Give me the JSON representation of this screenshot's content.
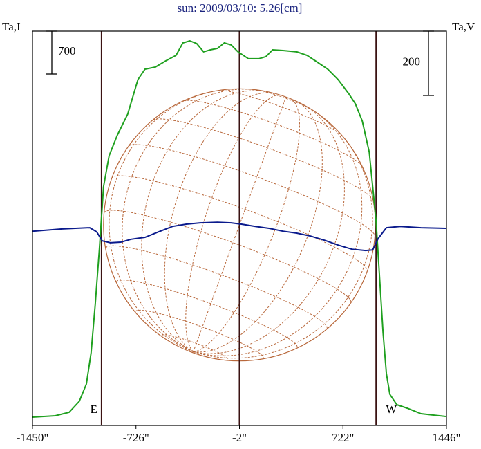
{
  "chart_data": {
    "type": "line",
    "title": "sun: 2009/03/10: 5.26[cm]",
    "ylabel": "Ta,I",
    "y2label": "Ta,V",
    "xlim": [
      -1450,
      1446
    ],
    "xticks": [
      {
        "value": -1450,
        "label": "-1450\""
      },
      {
        "value": -726,
        "label": "-726\""
      },
      {
        "value": -2,
        "label": "-2\""
      },
      {
        "value": 722,
        "label": "722\""
      },
      {
        "value": 1446,
        "label": "1446\""
      }
    ],
    "ylim": [
      0,
      6435
    ],
    "y2lim": [
      -613,
      613
    ],
    "scale_bars": [
      {
        "axis": "y",
        "value": 700
      },
      {
        "axis": "y2",
        "value": 200
      }
    ],
    "markers": [
      {
        "x": -967,
        "label": "E"
      },
      {
        "x": -2
      },
      {
        "x": 954,
        "label": "W"
      }
    ],
    "disk": {
      "center": -2,
      "radius": 951,
      "color": "#b8673a"
    },
    "series": [
      {
        "name": "Ta,I",
        "color": "#1fa01f",
        "x": [
          -1450,
          -1291,
          -1194,
          -1122,
          -1073,
          -1040,
          -1011,
          -982,
          -953,
          -914,
          -856,
          -784,
          -712,
          -663,
          -591,
          -518,
          -446,
          -398,
          -349,
          -301,
          -253,
          -205,
          -156,
          -108,
          -60,
          -12,
          61,
          133,
          182,
          230,
          302,
          399,
          471,
          544,
          616,
          688,
          761,
          809,
          857,
          906,
          930,
          954,
          978,
          1002,
          1026,
          1050,
          1099,
          1171,
          1268,
          1441
        ],
        "values": [
          135,
          158,
          214,
          395,
          677,
          1185,
          1976,
          2879,
          3895,
          4403,
          4742,
          5081,
          5645,
          5814,
          5848,
          5950,
          6040,
          6243,
          6277,
          6232,
          6097,
          6130,
          6153,
          6243,
          6210,
          6097,
          5984,
          5984,
          6018,
          6130,
          6119,
          6097,
          6040,
          5927,
          5814,
          5645,
          5419,
          5250,
          4968,
          4460,
          3895,
          3330,
          2427,
          1524,
          847,
          508,
          339,
          282,
          192,
          147
        ]
      },
      {
        "name": "Ta,V",
        "color": "#0a1a8c",
        "axis": "y2",
        "x": [
          -1450,
          -1242,
          -1049,
          -1001,
          -962,
          -905,
          -832,
          -760,
          -663,
          -567,
          -470,
          -374,
          -277,
          -156,
          -60,
          12,
          109,
          205,
          302,
          399,
          495,
          592,
          688,
          785,
          881,
          930,
          968,
          1026,
          1123,
          1268,
          1441
        ],
        "values": [
          -9,
          -2,
          2,
          -11,
          -39,
          -45,
          -43,
          -34,
          -28,
          -11,
          6,
          13,
          17,
          19,
          17,
          13,
          6,
          0,
          -9,
          -15,
          -24,
          -37,
          -52,
          -65,
          -69,
          -67,
          -32,
          2,
          6,
          2,
          0
        ]
      }
    ]
  }
}
